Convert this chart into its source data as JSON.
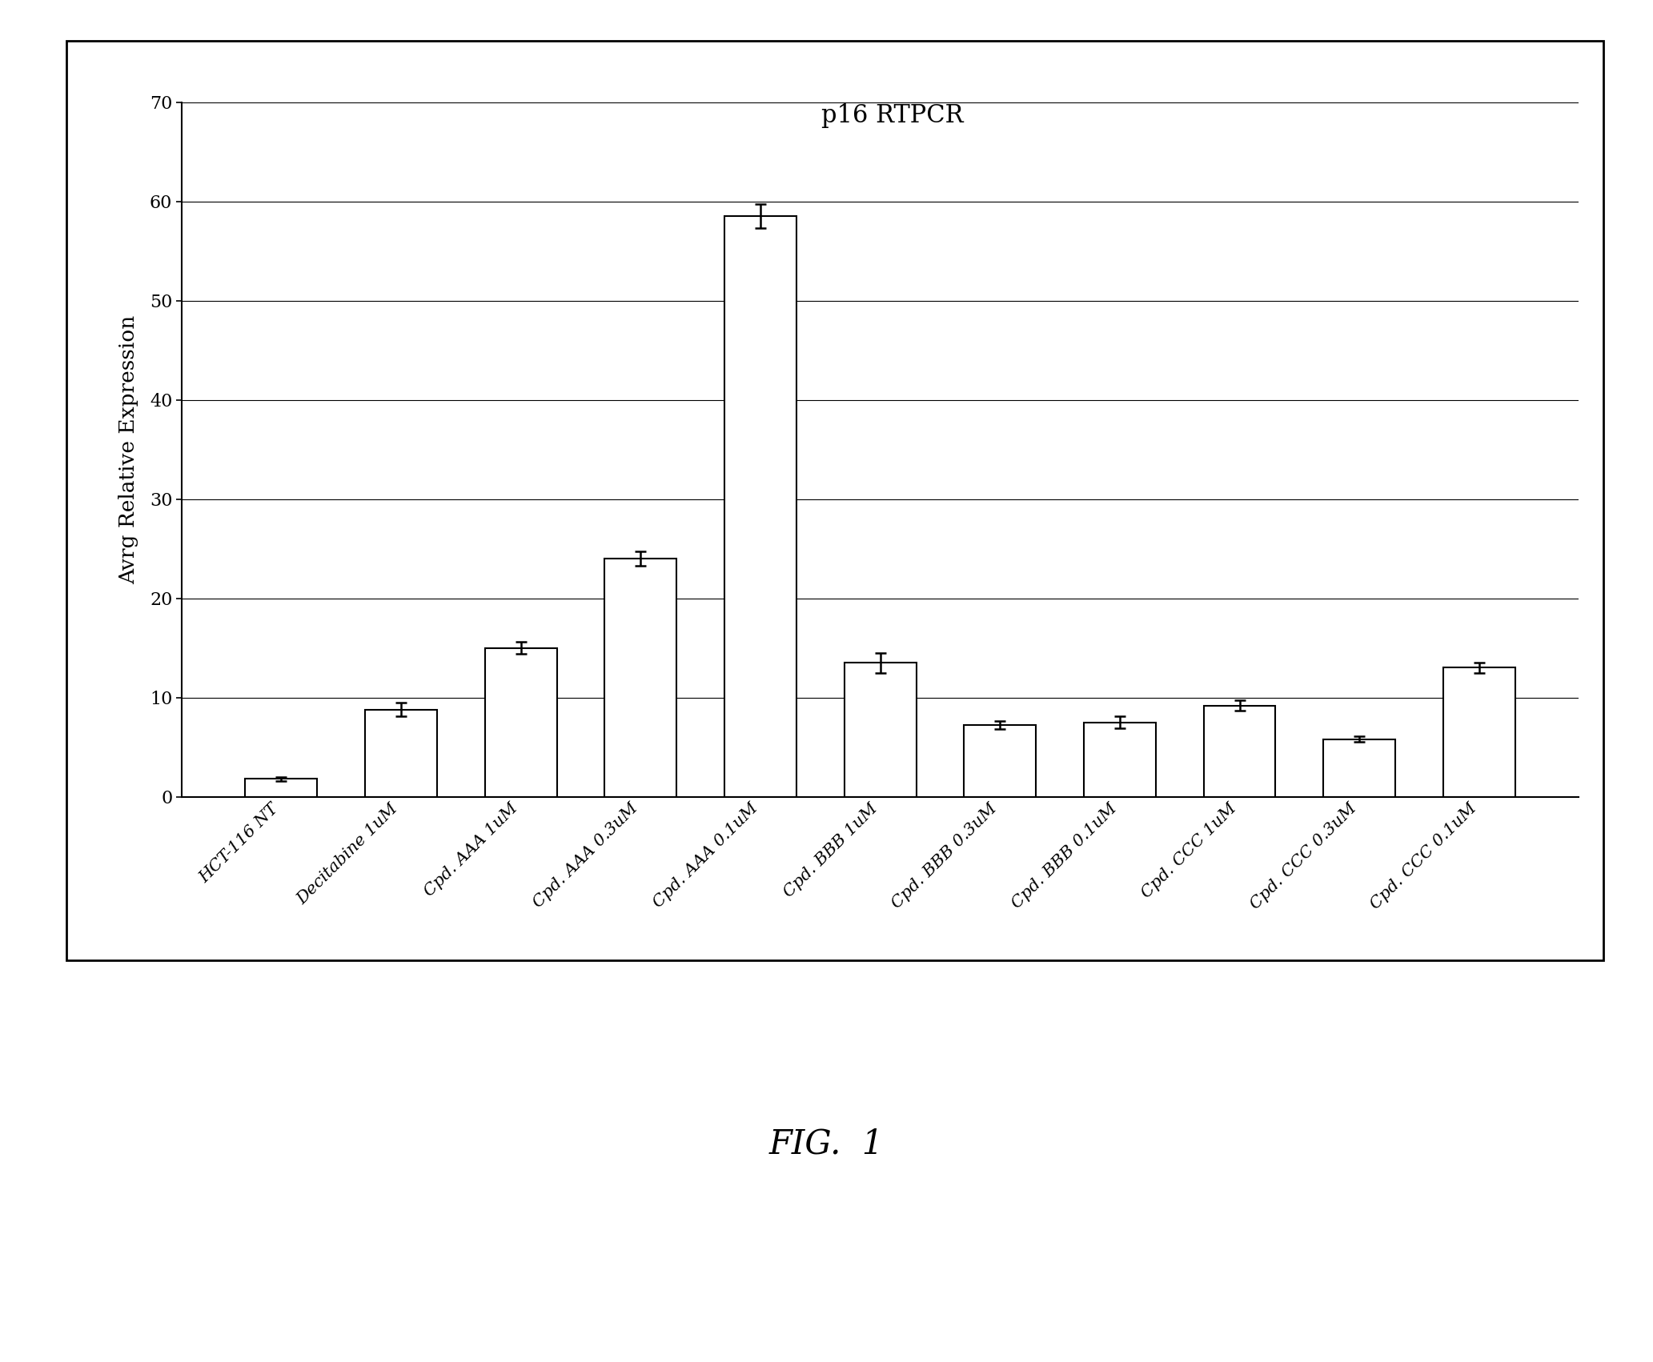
{
  "title": "p16 RTPCR",
  "ylabel": "Avrg Relative Expression",
  "categories": [
    "HCT-116 NT",
    "Decitabine 1uM",
    "Cpd. AAA 1uM",
    "Cpd. AAA 0.3uM",
    "Cpd. AAA 0.1uM",
    "Cpd. BBB 1uM",
    "Cpd. BBB 0.3uM",
    "Cpd. BBB 0.1uM",
    "Cpd. CCC 1uM",
    "Cpd. CCC 0.3uM",
    "Cpd. CCC 0.1uM"
  ],
  "values": [
    1.8,
    8.8,
    15.0,
    24.0,
    58.5,
    13.5,
    7.2,
    7.5,
    9.2,
    5.8,
    13.0
  ],
  "errors": [
    0.2,
    0.7,
    0.6,
    0.7,
    1.2,
    1.0,
    0.4,
    0.6,
    0.5,
    0.3,
    0.5
  ],
  "ylim": [
    0,
    70
  ],
  "yticks": [
    0,
    10,
    20,
    30,
    40,
    50,
    60,
    70
  ],
  "bar_color": "#ffffff",
  "bar_edgecolor": "#000000",
  "error_color": "#000000",
  "title_fontsize": 22,
  "ylabel_fontsize": 19,
  "tick_fontsize": 16,
  "xtick_fontsize": 15,
  "fig_caption": "FIG.  1",
  "fig_caption_fontsize": 30,
  "background_color": "#ffffff",
  "grid_color": "#000000",
  "frame_color": "#000000"
}
